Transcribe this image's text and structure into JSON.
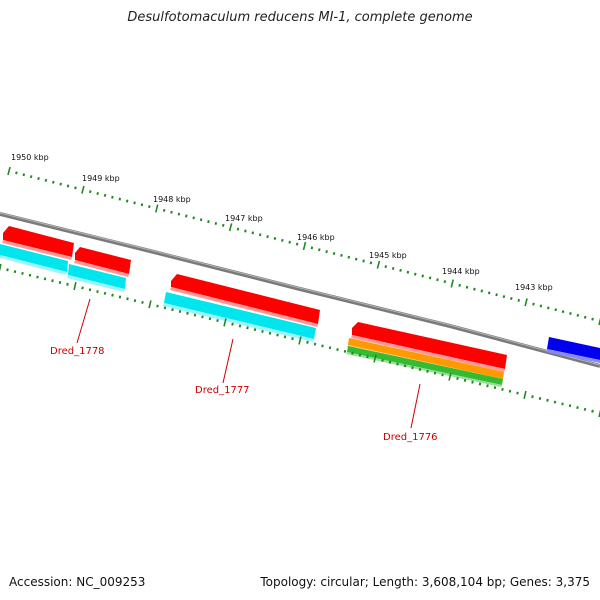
{
  "title": "Desulfotomaculum reducens MI-1, complete genome",
  "footer": {
    "accession": "Accession: NC_009253",
    "summary": "Topology: circular; Length: 3,608,104 bp; Genes: 3,375"
  },
  "scale_labels": [
    "1950 kbp",
    "1949 kbp",
    "1948 kbp",
    "1947 kbp",
    "1946 kbp",
    "1945 kbp",
    "1944 kbp",
    "1943 kbp"
  ],
  "gene_labels": [
    "Dred_1778",
    "Dred_1777",
    "Dred_1776"
  ],
  "colors": {
    "backbone": "#8a8a8a",
    "cds_forward": "#ff0000",
    "cds_reverse": "#0000ee",
    "feature_cyan": "#00e5ee",
    "feature_orange": "#ff9900",
    "feature_green": "#33bb33",
    "ticks": "#228822",
    "gene_label": "#cc0000"
  }
}
